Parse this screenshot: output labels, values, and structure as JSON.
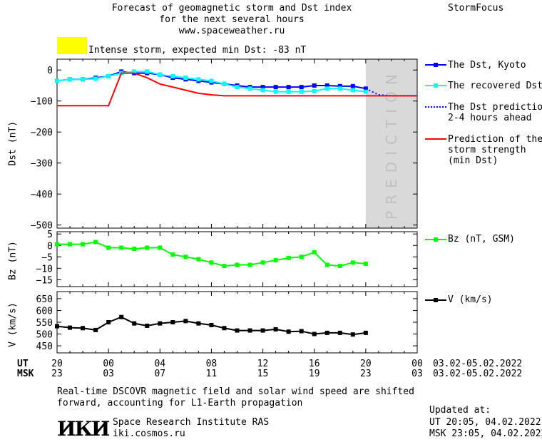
{
  "header": {
    "title_line1": "Forecast of geomagnetic storm and Dst index",
    "title_line2": "for the next several hours",
    "url": "www.spaceweather.ru",
    "brand": "StormFocus",
    "status_text": "Intense storm, expected min Dst: -83 nT",
    "status_color": "#ffff00"
  },
  "legend": {
    "dst_kyoto": "The Dst, Kyoto",
    "dst_recovered": "The recovered Dst",
    "dst_pred_1": "The Dst prediction",
    "dst_pred_2": "2-4 hours ahead",
    "storm_1": "Prediction of the",
    "storm_2": "storm strength",
    "storm_3": "(min Dst)",
    "bz": "Bz (nT, GSM)",
    "v": "V (km/s)"
  },
  "prediction_label": "PREDICTION",
  "time_axis": {
    "ut_label": "UT",
    "msk_label": "MSK",
    "ut_ticks": [
      "20",
      "00",
      "04",
      "08",
      "12",
      "16",
      "20",
      "00"
    ],
    "msk_ticks": [
      "23",
      "03",
      "07",
      "11",
      "15",
      "19",
      "23",
      "03"
    ],
    "date_range": "03.02-05.02.2022"
  },
  "footer": {
    "note_line1": "Real-time DSCOVR magnetic field and solar wind speed are shifted",
    "note_line2": "forward, accounting for L1-Earth propagation",
    "logo_text": "ИКИ",
    "institute": "Space Research Institute RAS",
    "site": "iki.cosmos.ru",
    "updated_label": "Updated at:",
    "updated_ut": "UT  20:05, 04.02.2022",
    "updated_msk": "MSK 23:05, 04.02.2022"
  },
  "colors": {
    "dst_kyoto": "#0000ff",
    "dst_recovered": "#00ffff",
    "dst_prediction": "#0000ff",
    "storm_strength": "#ff0000",
    "bz": "#00ff00",
    "v": "#000000",
    "prediction_band": "#d9d9d9"
  },
  "chart_data": [
    {
      "type": "line",
      "ylabel": "Dst (nT)",
      "x_unit": "hours from 20:00 UT 03.02.2022",
      "xlim": [
        0,
        28
      ],
      "ylim": [
        -510,
        35
      ],
      "yticks": [
        0,
        -100,
        -200,
        -300,
        -400,
        -500
      ],
      "prediction_region": [
        24,
        28
      ],
      "series": [
        {
          "name": "The Dst, Kyoto",
          "x": [
            0,
            1,
            2,
            3,
            4,
            5,
            6,
            7,
            8,
            9,
            10,
            11,
            12,
            13,
            14,
            15,
            16,
            17,
            18,
            19,
            20,
            21,
            22,
            23,
            24
          ],
          "values": [
            -35,
            -30,
            -30,
            -25,
            -20,
            -5,
            -10,
            -10,
            -15,
            -25,
            -30,
            -35,
            -40,
            -45,
            -50,
            -55,
            -55,
            -55,
            -55,
            -55,
            -50,
            -50,
            -52,
            -52,
            -60
          ]
        },
        {
          "name": "The recovered Dst",
          "x": [
            0,
            1,
            2,
            3,
            4,
            5,
            6,
            7,
            8,
            9,
            10,
            11,
            12,
            13,
            14,
            15,
            16,
            17,
            18,
            19,
            20,
            21,
            22,
            23,
            24
          ],
          "values": [
            -35,
            -30,
            -30,
            -28,
            -20,
            -10,
            -5,
            -5,
            -15,
            -20,
            -25,
            -30,
            -35,
            -45,
            -55,
            -60,
            -65,
            -70,
            -70,
            -70,
            -68,
            -60,
            -60,
            -65,
            -70
          ]
        },
        {
          "name": "The Dst prediction 2-4 hours ahead",
          "x": [
            24,
            25,
            26,
            27,
            28
          ],
          "values": [
            -60,
            -80,
            -83,
            -83,
            -83
          ]
        },
        {
          "name": "Prediction of the storm strength (min Dst)",
          "x": [
            0,
            1,
            2,
            3,
            4,
            5,
            6,
            7,
            8,
            9,
            10,
            11,
            12,
            13,
            14,
            15,
            16,
            17,
            18,
            19,
            20,
            21,
            22,
            23,
            24,
            25,
            26,
            27,
            28
          ],
          "values": [
            -115,
            -115,
            -115,
            -115,
            -115,
            -10,
            -10,
            -25,
            -45,
            -55,
            -65,
            -75,
            -80,
            -83,
            -83,
            -83,
            -83,
            -83,
            -83,
            -83,
            -83,
            -83,
            -83,
            -83,
            -83,
            -83,
            -83,
            -83,
            -83
          ]
        }
      ]
    },
    {
      "type": "line",
      "ylabel": "Bz (nT)",
      "xlim": [
        0,
        28
      ],
      "ylim": [
        -18,
        6
      ],
      "yticks": [
        5,
        0,
        -5,
        -10,
        -15
      ],
      "series": [
        {
          "name": "Bz (nT, GSM)",
          "x": [
            0,
            1,
            2,
            3,
            4,
            5,
            6,
            7,
            8,
            9,
            10,
            11,
            12,
            13,
            14,
            15,
            16,
            17,
            18,
            19,
            20,
            21,
            22,
            23,
            24
          ],
          "values": [
            0.5,
            0.5,
            0.5,
            1.5,
            -1,
            -1,
            -1.5,
            -1,
            -1,
            -4,
            -5,
            -6,
            -7.5,
            -9,
            -8.5,
            -8.5,
            -7.5,
            -6.5,
            -5.5,
            -5,
            -3,
            -8.5,
            -9,
            -7.5,
            -8
          ]
        }
      ]
    },
    {
      "type": "line",
      "ylabel": "V (km/s)",
      "xlim": [
        0,
        28
      ],
      "ylim": [
        420,
        680
      ],
      "yticks": [
        650,
        600,
        550,
        500,
        450
      ],
      "series": [
        {
          "name": "V (km/s)",
          "x": [
            0,
            1,
            2,
            3,
            4,
            5,
            6,
            7,
            8,
            9,
            10,
            11,
            12,
            13,
            14,
            15,
            16,
            17,
            18,
            19,
            20,
            21,
            22,
            23,
            24
          ],
          "values": [
            533,
            527,
            525,
            517,
            550,
            572,
            545,
            535,
            545,
            550,
            555,
            545,
            538,
            525,
            515,
            515,
            515,
            520,
            510,
            512,
            500,
            505,
            505,
            498,
            505
          ]
        }
      ]
    }
  ]
}
